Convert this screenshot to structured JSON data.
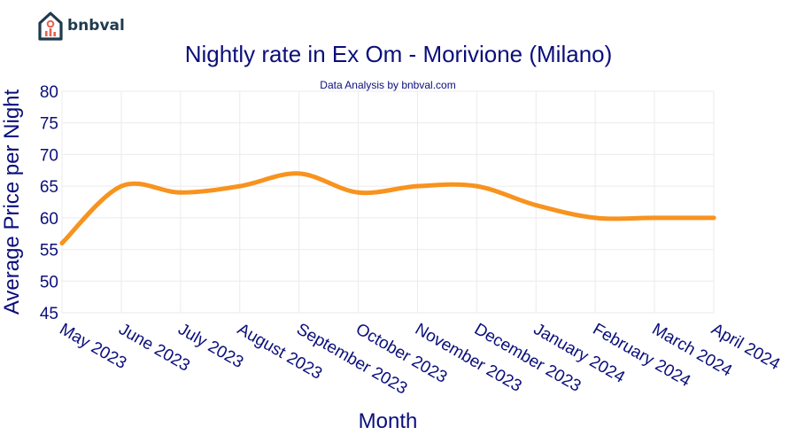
{
  "brand": {
    "name": "bnbval",
    "icon": "house-chart-icon",
    "color": "#1f3a4d",
    "accent": "#e8604c"
  },
  "chart_data": {
    "type": "line",
    "title": "Nightly rate in Ex Om - Morivione (Milano)",
    "subtitle": "Data Analysis by bnbval.com",
    "xlabel": "Month",
    "ylabel": "Average Price per Night",
    "categories": [
      "May 2023",
      "June 2023",
      "July 2023",
      "August 2023",
      "September 2023",
      "October 2023",
      "November 2023",
      "December 2023",
      "January 2024",
      "February 2024",
      "March 2024",
      "April 2024"
    ],
    "series": [
      {
        "values": [
          56,
          65,
          64,
          65,
          67,
          64,
          65,
          65,
          62,
          60,
          60,
          60
        ],
        "color": "#f7931e"
      }
    ],
    "ylim": [
      45,
      80
    ],
    "yticks": [
      45,
      50,
      55,
      60,
      65,
      70,
      75,
      80
    ],
    "grid": true,
    "text_color": "#0b0f7a"
  }
}
